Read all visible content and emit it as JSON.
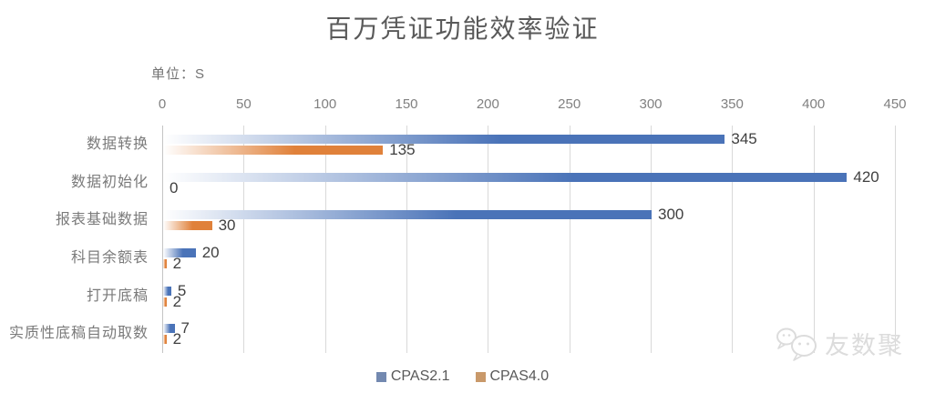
{
  "title": "百万凭证功能效率验证",
  "unit_label": "单位：S",
  "legend": [
    {
      "label": "CPAS2.1",
      "swatch_color": "#7389b0"
    },
    {
      "label": "CPAS4.0",
      "swatch_color": "#c9996a"
    }
  ],
  "watermark": {
    "text": "友数聚"
  },
  "chart_data": {
    "type": "bar",
    "orientation": "horizontal",
    "title": "百万凭证功能效率验证",
    "unit": "S",
    "categories": [
      "数据转换",
      "数据初始化",
      "报表基础数据",
      "科目余额表",
      "打开底稿",
      "实质性底稿自动取数"
    ],
    "series": [
      {
        "name": "CPAS2.1",
        "color": "#4a73b8",
        "values": [
          345,
          420,
          300,
          20,
          5,
          7
        ]
      },
      {
        "name": "CPAS4.0",
        "color": "#e0813a",
        "values": [
          135,
          0,
          30,
          2,
          2,
          2
        ]
      }
    ],
    "xlim": [
      0,
      450
    ],
    "xticks": [
      0,
      50,
      100,
      150,
      200,
      250,
      300,
      350,
      400,
      450
    ],
    "grid": true,
    "gridline_color": "#d9d9d9",
    "legend_position": "bottom",
    "value_labels": true
  }
}
